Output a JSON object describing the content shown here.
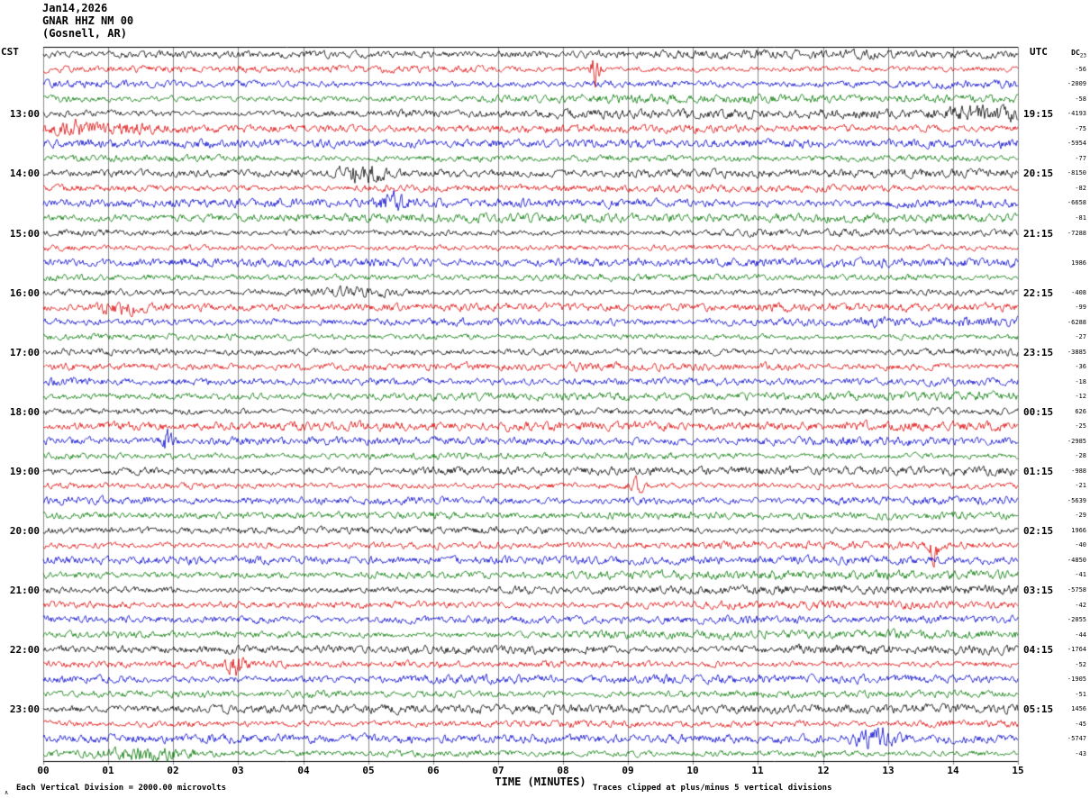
{
  "header": {
    "date": "Jan14,2026",
    "station": "GNAR HHZ NM 00",
    "location": "(Gosnell, AR)"
  },
  "axes": {
    "left_tz": "CST",
    "right_tz": "UTC",
    "x_title": "TIME (MINUTES)"
  },
  "footer": {
    "scale_note": "Each Vertical Division = 2000.00 microvolts",
    "clip_note": "Traces clipped at plus/minus 5 vertical divisions",
    "corner_mark": "∧"
  },
  "chart_data": {
    "type": "line",
    "kind": "helicorder-seismogram",
    "num_rows": 48,
    "minutes_per_row": 15,
    "x_range": [
      0,
      15
    ],
    "x_ticks": [
      "00",
      "01",
      "02",
      "03",
      "04",
      "05",
      "06",
      "07",
      "08",
      "09",
      "10",
      "11",
      "12",
      "13",
      "14",
      "15"
    ],
    "grid": true,
    "grid_color": "#8a8a8a",
    "trace_colors_cycle": [
      "#000000",
      "#dd0000",
      "#0000cc",
      "#007700"
    ],
    "left_hour_labels": [
      "13:00",
      "14:00",
      "15:00",
      "16:00",
      "17:00",
      "18:00",
      "19:00",
      "20:00",
      "21:00",
      "22:00",
      "23:00"
    ],
    "right_hour_labels": [
      "19:15",
      "20:15",
      "21:15",
      "22:15",
      "23:15",
      "00:15",
      "01:15",
      "02:15",
      "03:15",
      "04:15",
      "05:15"
    ],
    "label_row_start": 4,
    "label_row_step": 4,
    "dc_header": "DC",
    "dc_values": [
      23,
      -56,
      -2009,
      -58,
      -4193,
      -75,
      -5954,
      -77,
      -8150,
      -82,
      -6658,
      -81,
      -7288,
      null,
      1986,
      null,
      -408,
      -99,
      -6288,
      -27,
      -3885,
      -36,
      -18,
      -12,
      626,
      -25,
      -2985,
      -28,
      -988,
      -21,
      -5639,
      -29,
      1966,
      -40,
      -4850,
      -41,
      -5758,
      -42,
      -2055,
      -44,
      -1764,
      -52,
      -1905,
      -51,
      1456,
      -45,
      -5747,
      -43
    ],
    "division_microvolts": 2000.0,
    "clip_divisions": 5,
    "events": [
      {
        "row": 1,
        "min": 8.5,
        "width": 0.08,
        "gain": 5
      },
      {
        "row": 4,
        "min": 14.4,
        "width": 0.6,
        "gain": 1.6
      },
      {
        "row": 5,
        "min": 0.8,
        "width": 0.9,
        "gain": 1.8
      },
      {
        "row": 8,
        "min": 4.9,
        "width": 0.35,
        "gain": 1.8
      },
      {
        "row": 10,
        "min": 5.4,
        "width": 0.25,
        "gain": 1.8
      },
      {
        "row": 16,
        "min": 4.7,
        "width": 0.6,
        "gain": 1.2
      },
      {
        "row": 17,
        "min": 1.2,
        "width": 0.35,
        "gain": 2.2
      },
      {
        "row": 26,
        "min": 1.9,
        "width": 0.07,
        "gain": 4
      },
      {
        "row": 29,
        "min": 9.1,
        "width": 0.12,
        "gain": 2.5
      },
      {
        "row": 33,
        "min": 13.7,
        "width": 0.08,
        "gain": 4
      },
      {
        "row": 41,
        "min": 3.0,
        "width": 0.15,
        "gain": 2.5
      },
      {
        "row": 46,
        "min": 12.8,
        "width": 0.3,
        "gain": 2.5
      },
      {
        "row": 47,
        "min": 1.6,
        "width": 0.7,
        "gain": 1.5
      }
    ],
    "noise_seed": 20260114
  }
}
